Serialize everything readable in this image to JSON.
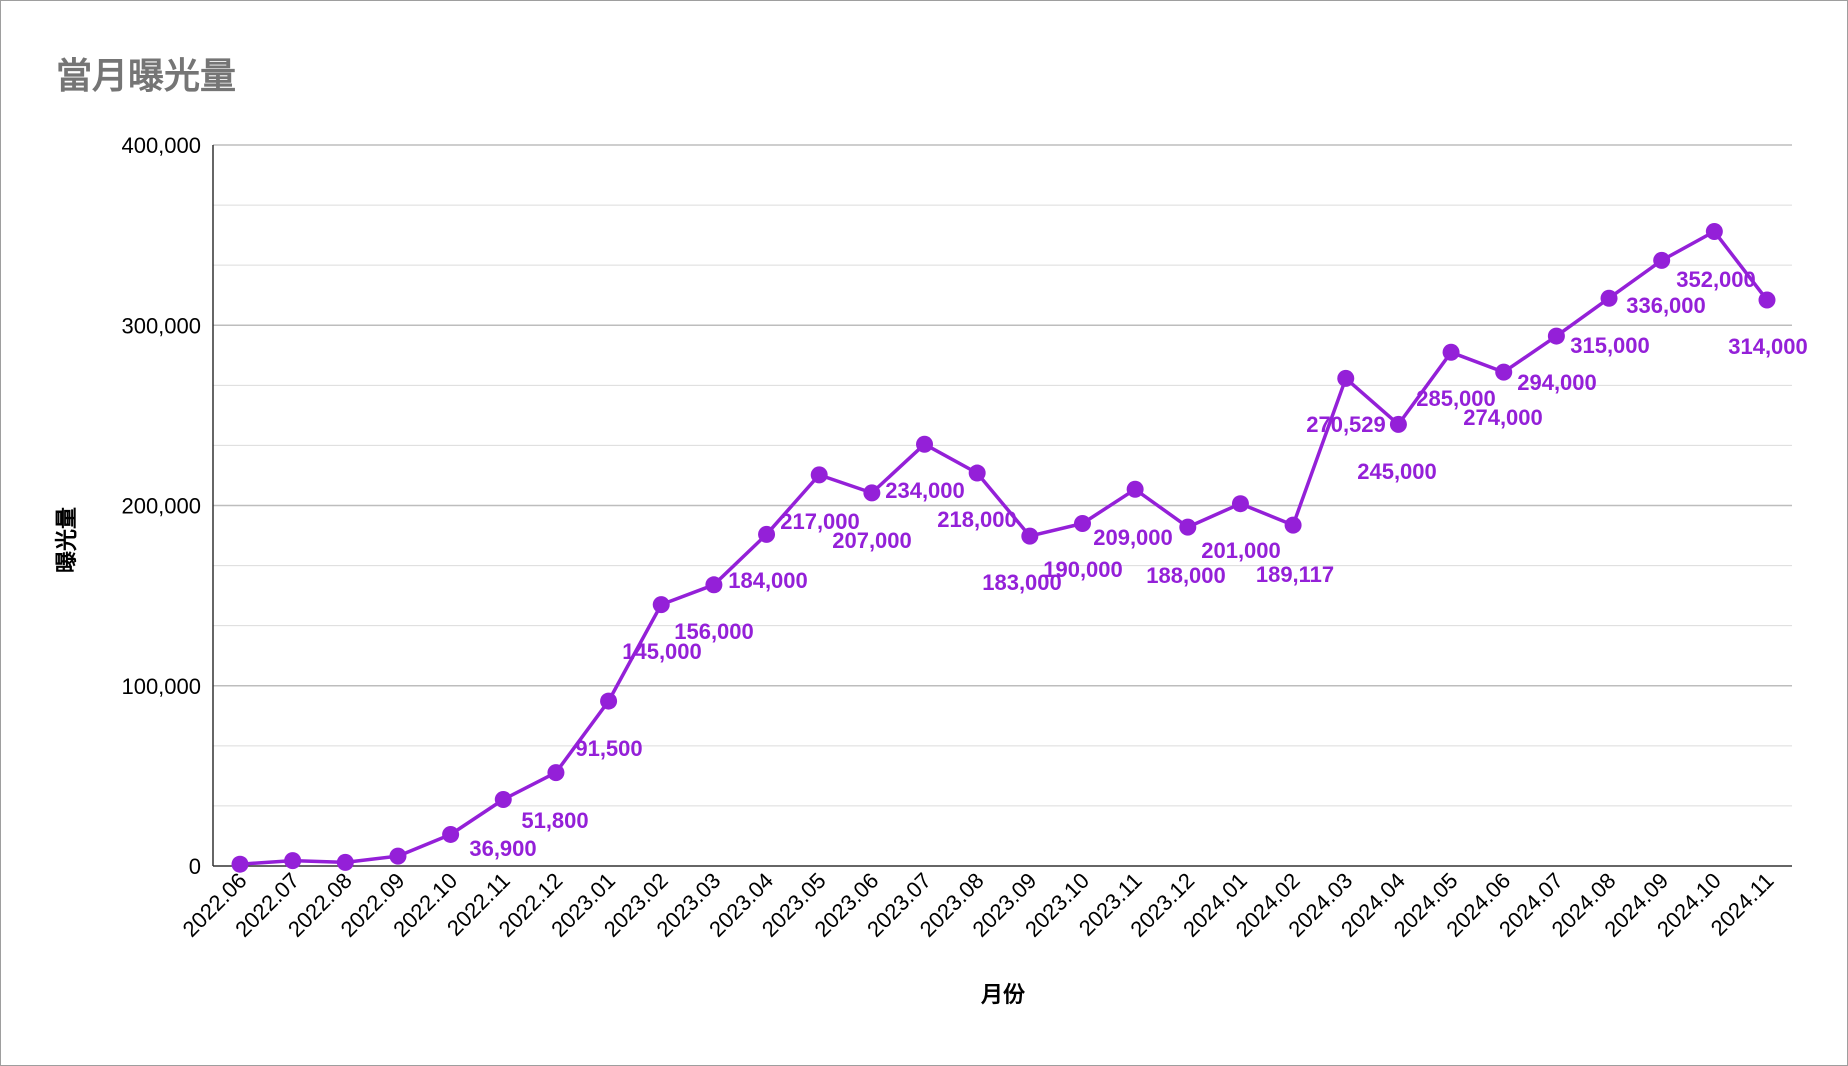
{
  "chart_data": {
    "type": "line",
    "title": "當月曝光量",
    "xlabel": "月份",
    "ylabel": "曝光量",
    "ylim": [
      0,
      400000
    ],
    "yticks": [
      {
        "value": 0,
        "label": "0"
      },
      {
        "value": 100000,
        "label": "100,000"
      },
      {
        "value": 200000,
        "label": "200,000"
      },
      {
        "value": 300000,
        "label": "300,000"
      },
      {
        "value": 400000,
        "label": "400,000"
      }
    ],
    "grid": true,
    "line_color": "#9420d8",
    "gridline_color": "#dcdcdc",
    "categories": [
      "2022.06",
      "2022.07",
      "2022.08",
      "2022.09",
      "2022.10",
      "2022.11",
      "2022.12",
      "2023.01",
      "2023.02",
      "2023.03",
      "2023.04",
      "2023.05",
      "2023.06",
      "2023.07",
      "2023.08",
      "2023.09",
      "2023.10",
      "2023.11",
      "2023.12",
      "2024.01",
      "2024.02",
      "2024.03",
      "2024.04",
      "2024.05",
      "2024.06",
      "2024.07",
      "2024.08",
      "2024.09",
      "2024.10",
      "2024.11"
    ],
    "values": [
      1000,
      3000,
      2000,
      5500,
      17500,
      36900,
      51800,
      91500,
      145000,
      156000,
      184000,
      217000,
      207000,
      234000,
      218000,
      183000,
      190000,
      209000,
      188000,
      201000,
      189117,
      270529,
      245000,
      285000,
      274000,
      294000,
      315000,
      336000,
      352000,
      314000
    ],
    "data_labels": [
      "",
      "",
      "",
      "",
      "",
      "36,900",
      "51,800",
      "91,500",
      "145,000",
      "156,000",
      "184,000",
      "217,000",
      "207,000",
      "234,000",
      "218,000",
      "183,000",
      "190,000",
      "209,000",
      "188,000",
      "201,000",
      "189,117",
      "270,529",
      "245,000",
      "285,000",
      "274,000",
      "294,000",
      "315,000",
      "336,000",
      "352,000",
      "314,000"
    ]
  }
}
